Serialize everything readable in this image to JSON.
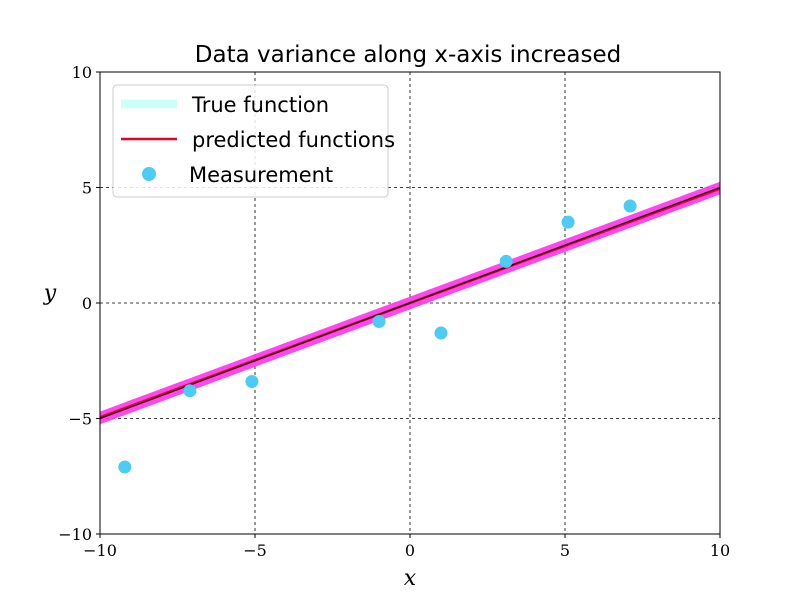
{
  "chart_data": {
    "type": "scatter",
    "title": "Data variance along x-axis increased",
    "xlabel": "x",
    "ylabel": "y",
    "xlim": [
      -10,
      10
    ],
    "ylim": [
      -10,
      10
    ],
    "xticks": [
      -10,
      -5,
      0,
      5,
      10
    ],
    "yticks": [
      -10,
      -5,
      0,
      5,
      10
    ],
    "xtick_labels": [
      "−10",
      "−5",
      "0",
      "5",
      "10"
    ],
    "ytick_labels": [
      "−10",
      "−5",
      "0",
      "5",
      "10"
    ],
    "grid": true,
    "legend_position": "top-left",
    "series": [
      {
        "name": "True function",
        "kind": "line",
        "color": "#ccfff5",
        "x": [
          -10,
          10
        ],
        "y": [
          -5,
          5
        ]
      },
      {
        "name": "predicted functions",
        "kind": "line-band",
        "color": "#e8002a",
        "band_color": "#ff33ee",
        "x": [
          -10,
          10
        ],
        "y": [
          -4.95,
          4.95
        ],
        "band_y_lower": [
          -5.25,
          4.7
        ],
        "band_y_upper": [
          -4.7,
          5.25
        ]
      },
      {
        "name": "Measurement",
        "kind": "scatter",
        "color": "#4ccbf5",
        "x": [
          -9.2,
          -7.1,
          -5.1,
          -1.0,
          1.0,
          3.1,
          5.1,
          7.1
        ],
        "y": [
          -7.1,
          -3.8,
          -3.4,
          -0.8,
          -1.3,
          1.8,
          3.5,
          4.2
        ]
      }
    ]
  }
}
